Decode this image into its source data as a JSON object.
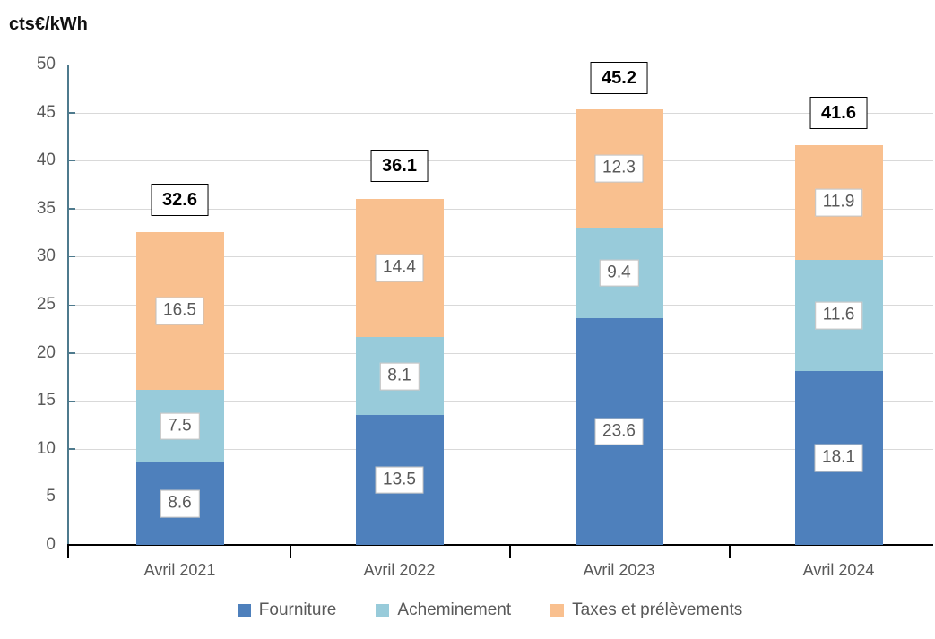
{
  "chart_data": {
    "type": "bar",
    "stacked": true,
    "title": "cts€/kWh",
    "categories": [
      "Avril 2021",
      "Avril 2022",
      "Avril 2023",
      "Avril 2024"
    ],
    "series": [
      {
        "name": "Fourniture",
        "color": "#4e80bc",
        "values": [
          8.6,
          13.5,
          23.6,
          18.1
        ]
      },
      {
        "name": "Acheminement",
        "color": "#98cbda",
        "values": [
          7.5,
          8.1,
          9.4,
          11.6
        ]
      },
      {
        "name": "Taxes et prélèvements",
        "color": "#f9c08f",
        "values": [
          16.5,
          14.4,
          12.3,
          11.9
        ]
      }
    ],
    "totals": [
      32.6,
      36.1,
      45.2,
      41.6
    ],
    "y_axis": {
      "min": 0,
      "max": 50,
      "step": 5,
      "tick_labels": [
        "0",
        "5",
        "10",
        "15",
        "20",
        "25",
        "30",
        "35",
        "40",
        "45",
        "50"
      ]
    },
    "grid": true,
    "legend_position": "bottom",
    "legend_labels": [
      "Fourniture",
      "Acheminement",
      "Taxes et prélèvements"
    ]
  },
  "colors": {
    "fourniture": "#4e80bc",
    "acheminement": "#98cbda",
    "taxes": "#f9c08f",
    "gridline": "#d9d9d9",
    "y_axis_line": "#4e7a8d",
    "x_axis_line": "#000000",
    "value_label_text": "#595959",
    "value_label_border": "#bfbfbf",
    "total_label_border": "#000000"
  }
}
